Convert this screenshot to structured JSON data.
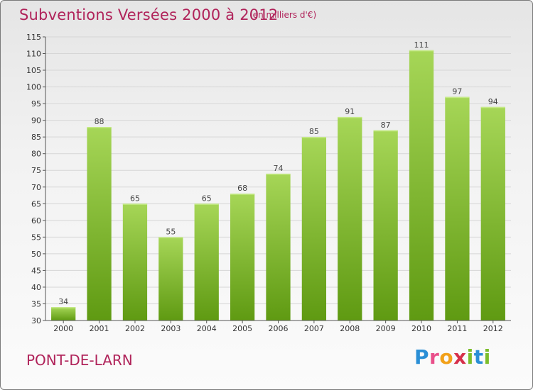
{
  "header": {
    "title": "Subventions Versées 2000 à 2012",
    "subtitle": "(en milliers d'€)"
  },
  "footer": {
    "place": "PONT-DE-LARN",
    "brand_letters": [
      "P",
      "r",
      "o",
      "x",
      "i",
      "t",
      "i"
    ]
  },
  "colors": {
    "title": "#b0235a",
    "bar_top": "#a6d657",
    "bar_bottom": "#5f9a12",
    "grid": "#d6d6d6"
  },
  "chart_data": {
    "type": "bar",
    "title": "Subventions Versées 2000 à 2012",
    "subtitle": "(en milliers d'€)",
    "xlabel": "",
    "ylabel": "",
    "categories": [
      "2000",
      "2001",
      "2002",
      "2003",
      "2004",
      "2005",
      "2006",
      "2007",
      "2008",
      "2009",
      "2010",
      "2011",
      "2012"
    ],
    "values": [
      34,
      88,
      65,
      55,
      65,
      68,
      74,
      85,
      91,
      87,
      111,
      97,
      94
    ],
    "ylim": [
      30,
      115
    ],
    "yticks": [
      30,
      35,
      40,
      45,
      50,
      55,
      60,
      65,
      70,
      75,
      80,
      85,
      90,
      95,
      100,
      105,
      110,
      115
    ],
    "grid": true,
    "legend": "none"
  }
}
